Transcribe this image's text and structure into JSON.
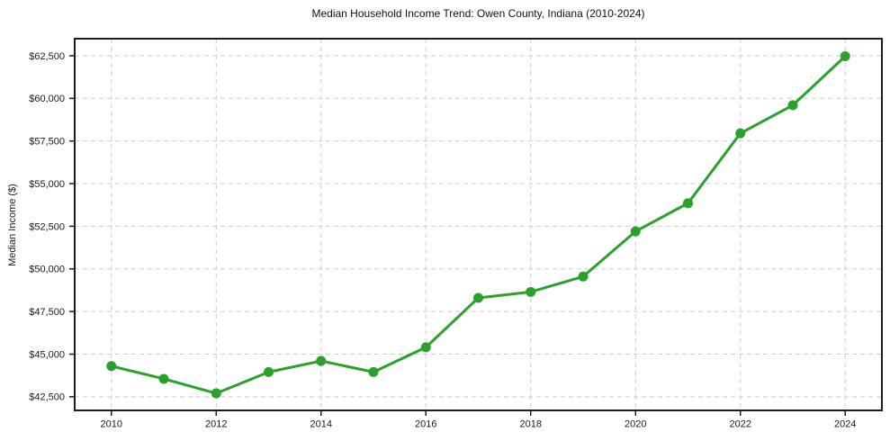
{
  "figure": {
    "title": "Median Household Income Trend: Owen County, Indiana (2010-2024)",
    "ylabel": "Median Income ($)"
  },
  "chart_data": {
    "type": "line",
    "title": "Median Household Income Trend: Owen County, Indiana (2010-2024)",
    "xlabel": "",
    "ylabel": "Median Income ($)",
    "x": [
      2010,
      2011,
      2012,
      2013,
      2014,
      2015,
      2016,
      2017,
      2018,
      2019,
      2020,
      2021,
      2022,
      2023,
      2024
    ],
    "values": [
      44300,
      43550,
      42700,
      43950,
      44600,
      43950,
      45400,
      48300,
      48650,
      49550,
      52200,
      53850,
      57950,
      59600,
      62470
    ],
    "series_name": "Median Household Income",
    "x_ticks": [
      2010,
      2012,
      2014,
      2016,
      2018,
      2020,
      2022,
      2024
    ],
    "y_ticks": [
      42500,
      45000,
      47500,
      50000,
      52500,
      55000,
      57500,
      60000,
      62500
    ],
    "y_tick_prefix": "$",
    "xlim": [
      2009.3,
      2024.7
    ],
    "ylim": [
      41700,
      63500
    ],
    "grid": true,
    "grid_style": "dashed",
    "legend": false,
    "line_color": "#2ca02c",
    "marker": "circle"
  }
}
